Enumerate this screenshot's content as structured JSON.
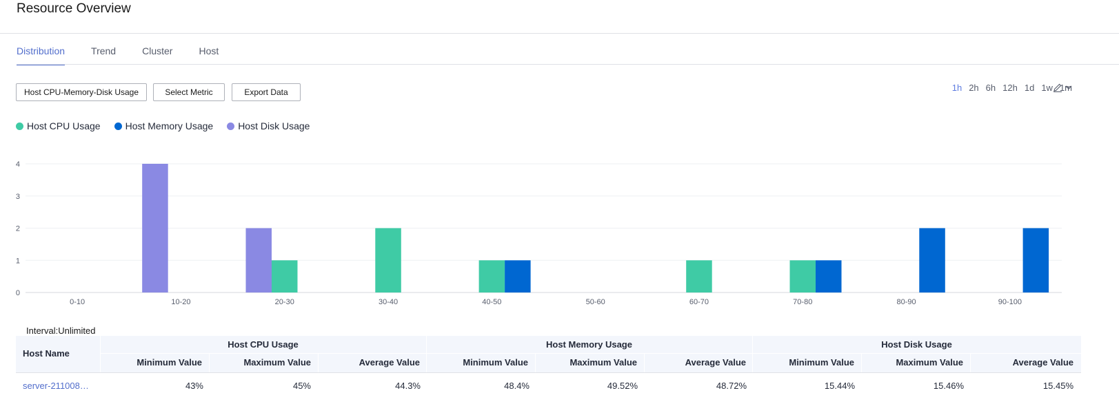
{
  "header": {
    "title": "Resource Overview"
  },
  "tabs": [
    {
      "label": "Distribution",
      "active": true
    },
    {
      "label": "Trend",
      "active": false
    },
    {
      "label": "Cluster",
      "active": false
    },
    {
      "label": "Host",
      "active": false
    }
  ],
  "toolbar": {
    "metric_select": "Host CPU-Memory-Disk Usage",
    "select_metric": "Select Metric",
    "export_data": "Export Data"
  },
  "time_ranges": [
    {
      "label": "1h",
      "active": true
    },
    {
      "label": "2h",
      "active": false
    },
    {
      "label": "6h",
      "active": false
    },
    {
      "label": "12h",
      "active": false
    },
    {
      "label": "1d",
      "active": false
    },
    {
      "label": "1w",
      "active": false
    },
    {
      "label": "1m",
      "active": false
    }
  ],
  "icons": {
    "edit": "pencil-icon",
    "expand": "chevron-down-icon"
  },
  "colors": {
    "accent": "#5e7ce0",
    "cpu": "#3fcba5",
    "memory": "#0067d1",
    "disk": "#8a89e3"
  },
  "chart_data": {
    "type": "bar",
    "categories": [
      "0-10",
      "10-20",
      "20-30",
      "30-40",
      "40-50",
      "50-60",
      "60-70",
      "70-80",
      "80-90",
      "90-100"
    ],
    "series": [
      {
        "name": "Host CPU Usage",
        "color": "#3fcba5",
        "values": [
          0,
          0,
          1,
          2,
          1,
          0,
          1,
          1,
          0,
          0
        ]
      },
      {
        "name": "Host Memory Usage",
        "color": "#0067d1",
        "values": [
          0,
          0,
          0,
          0,
          1,
          0,
          0,
          1,
          2,
          2
        ]
      },
      {
        "name": "Host Disk Usage",
        "color": "#8a89e3",
        "values": [
          0,
          4,
          2,
          0,
          0,
          0,
          0,
          0,
          0,
          0
        ]
      }
    ],
    "yticks": [
      0,
      1,
      2,
      3,
      4
    ],
    "ylim": [
      0,
      4
    ],
    "legend_position": "top-left",
    "grid": true
  },
  "table": {
    "interval": "Interval:Unlimited",
    "host_header": "Host Name",
    "groups": [
      "Host CPU Usage",
      "Host Memory Usage",
      "Host Disk Usage"
    ],
    "subheaders": [
      "Minimum Value",
      "Maximum Value",
      "Average Value"
    ],
    "rows": [
      {
        "host": "server-211008…",
        "cpu": [
          "43%",
          "45%",
          "44.3%"
        ],
        "memory": [
          "48.4%",
          "49.52%",
          "48.72%"
        ],
        "disk": [
          "15.44%",
          "15.46%",
          "15.45%"
        ]
      }
    ]
  }
}
